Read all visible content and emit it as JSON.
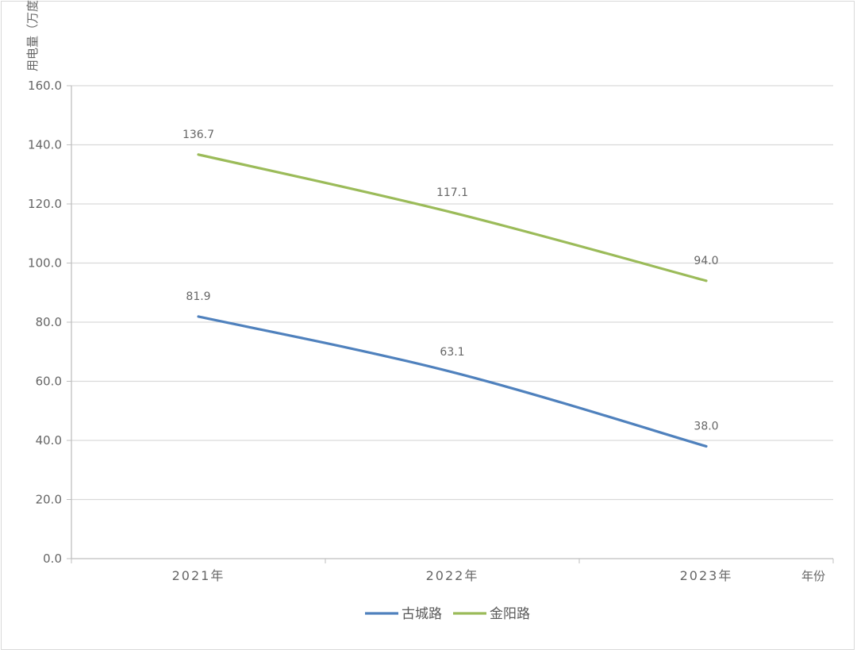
{
  "chart_data": {
    "type": "line",
    "title": "",
    "ylabel": "用电量（万度）",
    "xlabel": "年份",
    "categories": [
      "2021年",
      "2022年",
      "2023年"
    ],
    "ylim": [
      0,
      160
    ],
    "yticks": [
      "0.0",
      "20.0",
      "40.0",
      "60.0",
      "80.0",
      "100.0",
      "120.0",
      "140.0",
      "160.0"
    ],
    "grid": true,
    "legend_position": "bottom",
    "series": [
      {
        "name": "古城路",
        "color": "#4f81bd",
        "values": [
          81.9,
          63.1,
          38.0
        ],
        "labels": [
          "81.9",
          "63.1",
          "38.0"
        ]
      },
      {
        "name": "金阳路",
        "color": "#9bbb59",
        "values": [
          136.7,
          117.1,
          94.0
        ],
        "labels": [
          "136.7",
          "117.1",
          "94.0"
        ]
      }
    ]
  }
}
